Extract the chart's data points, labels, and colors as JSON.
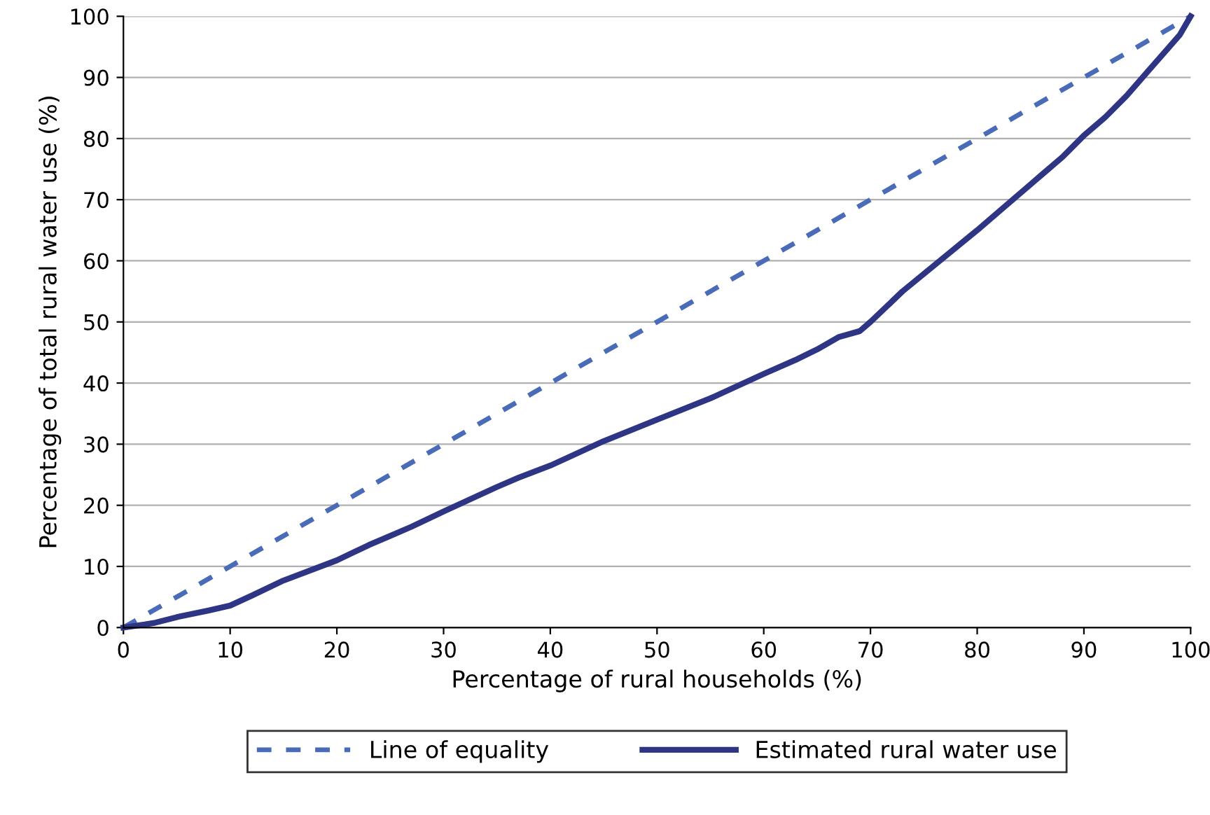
{
  "chart_data": {
    "type": "line",
    "xlabel": "Percentage of rural households (%)",
    "ylabel": "Percentage of total rural water use (%)",
    "xlim": [
      0,
      100
    ],
    "ylim": [
      0,
      100
    ],
    "xticks": [
      0,
      10,
      20,
      30,
      40,
      50,
      60,
      70,
      80,
      90,
      100
    ],
    "yticks": [
      0,
      10,
      20,
      30,
      40,
      50,
      60,
      70,
      80,
      90,
      100
    ],
    "grid": "y",
    "legend": "bottom",
    "series": [
      {
        "name": "Line of equality",
        "color": "#4a6cb8",
        "line_style": "dashed",
        "x": [
          0,
          100
        ],
        "values": [
          0,
          100
        ]
      },
      {
        "name": "Estimated rural water use",
        "color": "#2e3585",
        "line_style": "solid",
        "x": [
          0,
          2,
          3,
          5,
          8,
          10,
          12,
          15,
          20,
          23,
          25,
          27,
          30,
          35,
          37,
          40,
          45,
          50,
          55,
          60,
          63,
          65,
          67,
          69,
          70,
          73,
          80,
          82,
          85,
          86,
          88,
          90,
          92,
          94,
          96,
          98,
          99,
          100
        ],
        "values": [
          0,
          0.5,
          0.8,
          1.7,
          2.8,
          3.6,
          5.2,
          7.7,
          11,
          13.5,
          15,
          16.5,
          19,
          23,
          24.5,
          26.5,
          30.5,
          34,
          37.5,
          41.5,
          43.8,
          45.5,
          47.5,
          48.5,
          50,
          55,
          65,
          68,
          72.5,
          74,
          77,
          80.5,
          83.5,
          87,
          91,
          95,
          97,
          100
        ]
      }
    ]
  }
}
